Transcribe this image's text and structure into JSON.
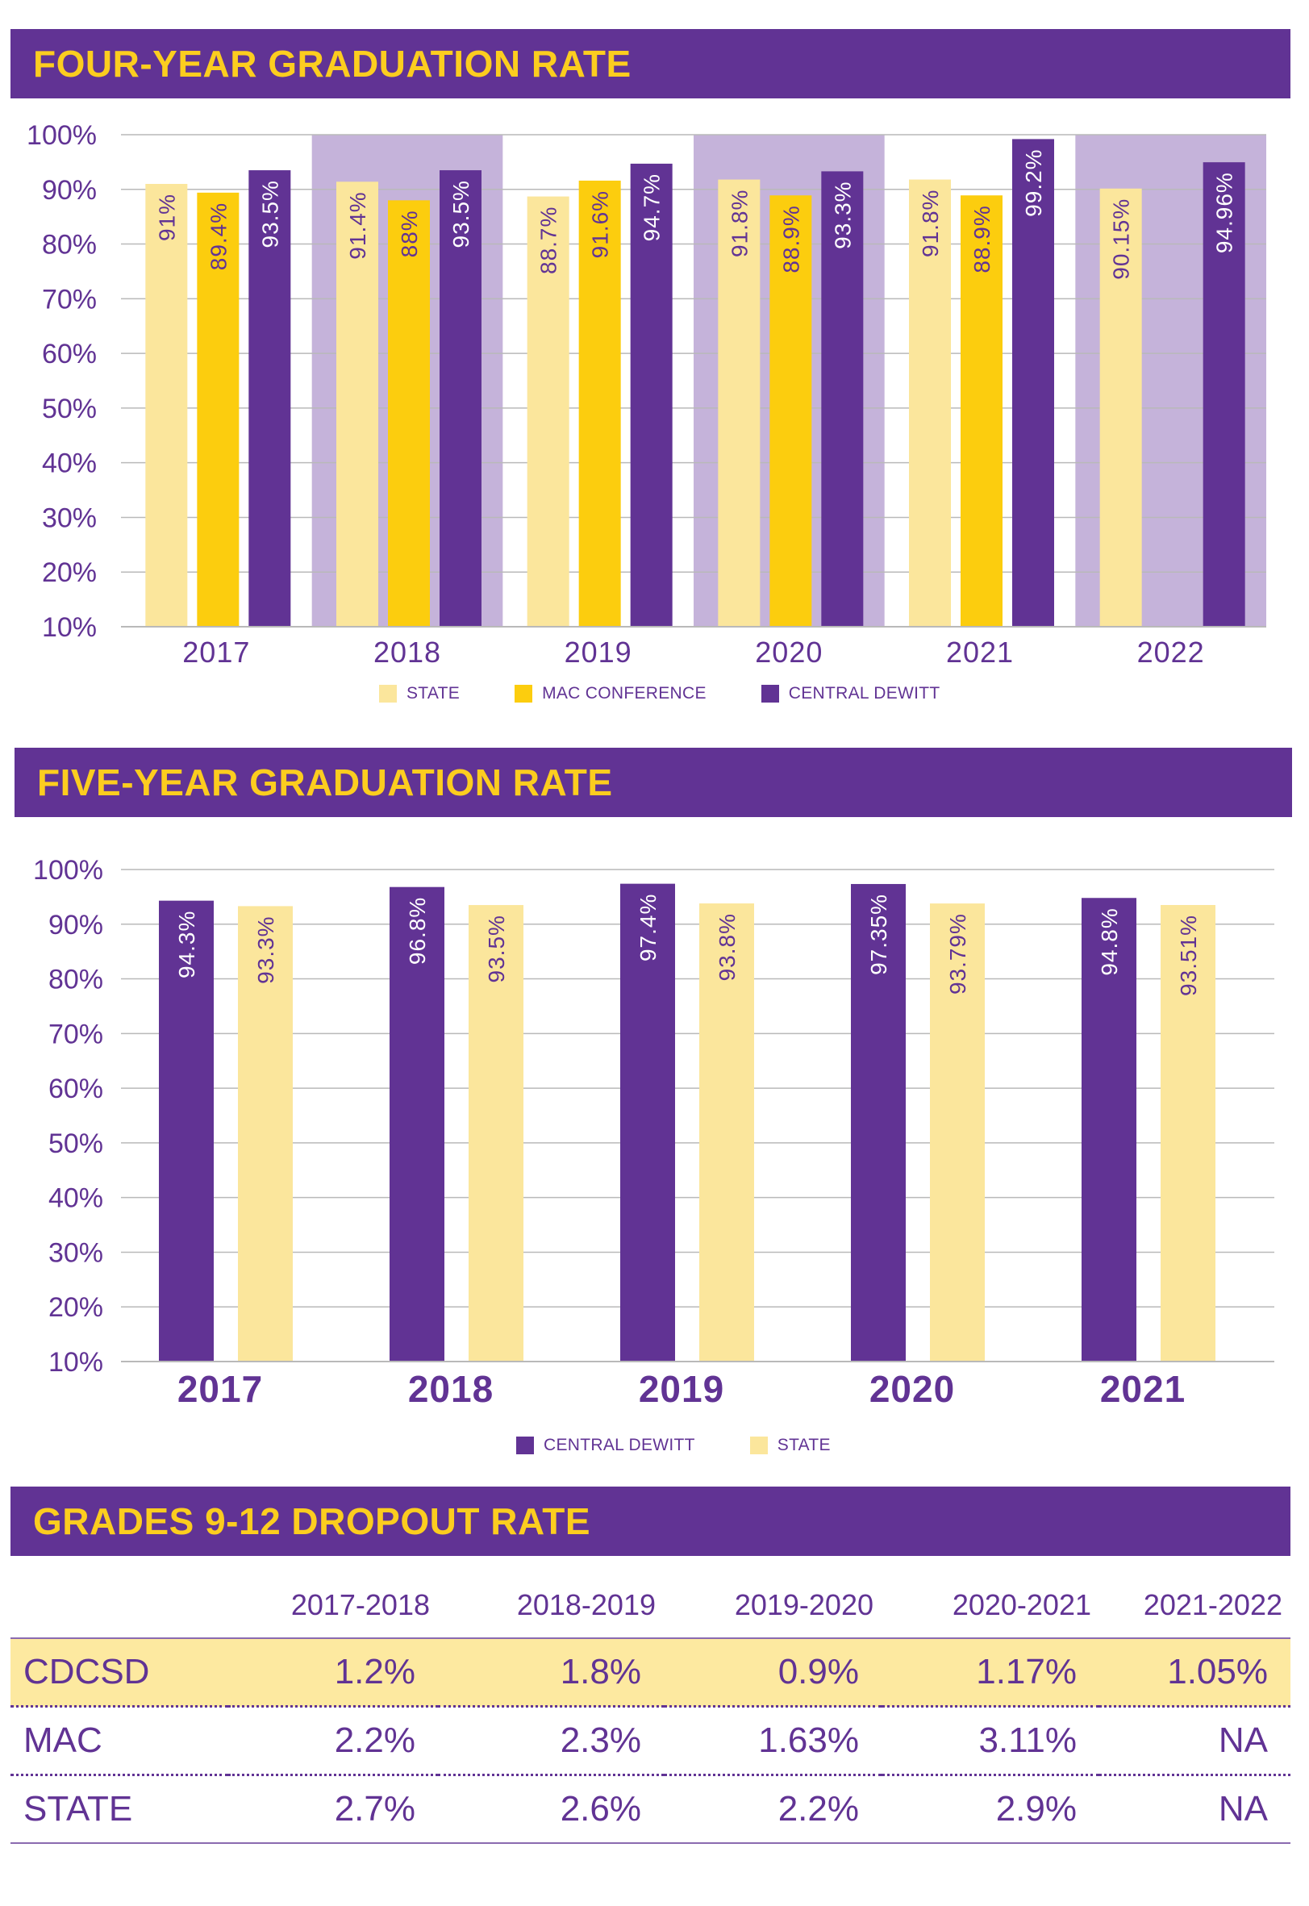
{
  "colors": {
    "purple": "#613394",
    "gold": "#fccd0e",
    "light_gold": "#fbe69c",
    "lavender": "#c5b3da",
    "gridline": "#b9b9b9"
  },
  "four_year": {
    "title": "FOUR-YEAR GRADUATION RATE",
    "legend": [
      "STATE",
      "MAC CONFERENCE",
      "CENTRAL DEWITT"
    ]
  },
  "five_year": {
    "title": "FIVE-YEAR GRADUATION RATE",
    "legend": [
      "CENTRAL DEWITT",
      "STATE"
    ]
  },
  "dropout": {
    "title": "GRADES 9-12 DROPOUT RATE",
    "headers": [
      "2017-2018",
      "2018-2019",
      "2019-2020",
      "2020-2021",
      "2021-2022"
    ],
    "rows": [
      {
        "label": "CDCSD",
        "values": [
          "1.2%",
          "1.8%",
          "0.9%",
          "1.17%",
          "1.05%"
        ]
      },
      {
        "label": "MAC",
        "values": [
          "2.2%",
          "2.3%",
          "1.63%",
          "3.11%",
          "NA"
        ]
      },
      {
        "label": "STATE",
        "values": [
          "2.7%",
          "2.6%",
          "2.2%",
          "2.9%",
          "NA"
        ]
      }
    ]
  },
  "chart_data": [
    {
      "type": "bar",
      "title": "FOUR-YEAR GRADUATION RATE",
      "categories": [
        "2017",
        "2018",
        "2019",
        "2020",
        "2021",
        "2022"
      ],
      "ylim": [
        10,
        100
      ],
      "yticks": [
        "10%",
        "20%",
        "30%",
        "40%",
        "50%",
        "60%",
        "70%",
        "80%",
        "90%",
        "100%"
      ],
      "grid": true,
      "legend_position": "bottom",
      "shaded_categories": [
        "2018",
        "2020",
        "2022"
      ],
      "series": [
        {
          "name": "STATE",
          "color": "#fbe69c",
          "values": [
            91,
            91.4,
            88.7,
            91.8,
            91.8,
            90.15
          ],
          "labels": [
            "91%",
            "91.4%",
            "88.7%",
            "91.8%",
            "91.8%",
            "90.15%"
          ]
        },
        {
          "name": "MAC CONFERENCE",
          "color": "#fccd0e",
          "values": [
            89.4,
            88,
            91.6,
            88.9,
            88.9,
            null
          ],
          "labels": [
            "89.4%",
            "88%",
            "91.6%",
            "88.9%",
            "88.9%",
            ""
          ]
        },
        {
          "name": "CENTRAL DEWITT",
          "color": "#613394",
          "values": [
            93.5,
            93.5,
            94.7,
            93.3,
            99.2,
            94.96
          ],
          "labels": [
            "93.5%",
            "93.5%",
            "94.7%",
            "93.3%",
            "99.2%",
            "94.96%"
          ]
        }
      ]
    },
    {
      "type": "bar",
      "title": "FIVE-YEAR GRADUATION RATE",
      "categories": [
        "2017",
        "2018",
        "2019",
        "2020",
        "2021"
      ],
      "ylim": [
        10,
        100
      ],
      "yticks": [
        "10%",
        "20%",
        "30%",
        "40%",
        "50%",
        "60%",
        "70%",
        "80%",
        "90%",
        "100%"
      ],
      "grid": true,
      "legend_position": "bottom",
      "series": [
        {
          "name": "CENTRAL DEWITT",
          "color": "#613394",
          "values": [
            94.3,
            96.8,
            97.4,
            97.35,
            94.8
          ],
          "labels": [
            "94.3%",
            "96.8%",
            "97.4%",
            "97.35%",
            "94.8%"
          ]
        },
        {
          "name": "STATE",
          "color": "#fbe69c",
          "values": [
            93.3,
            93.5,
            93.8,
            93.79,
            93.51
          ],
          "labels": [
            "93.3%",
            "93.5%",
            "93.8%",
            "93.79%",
            "93.51%"
          ]
        }
      ]
    }
  ]
}
